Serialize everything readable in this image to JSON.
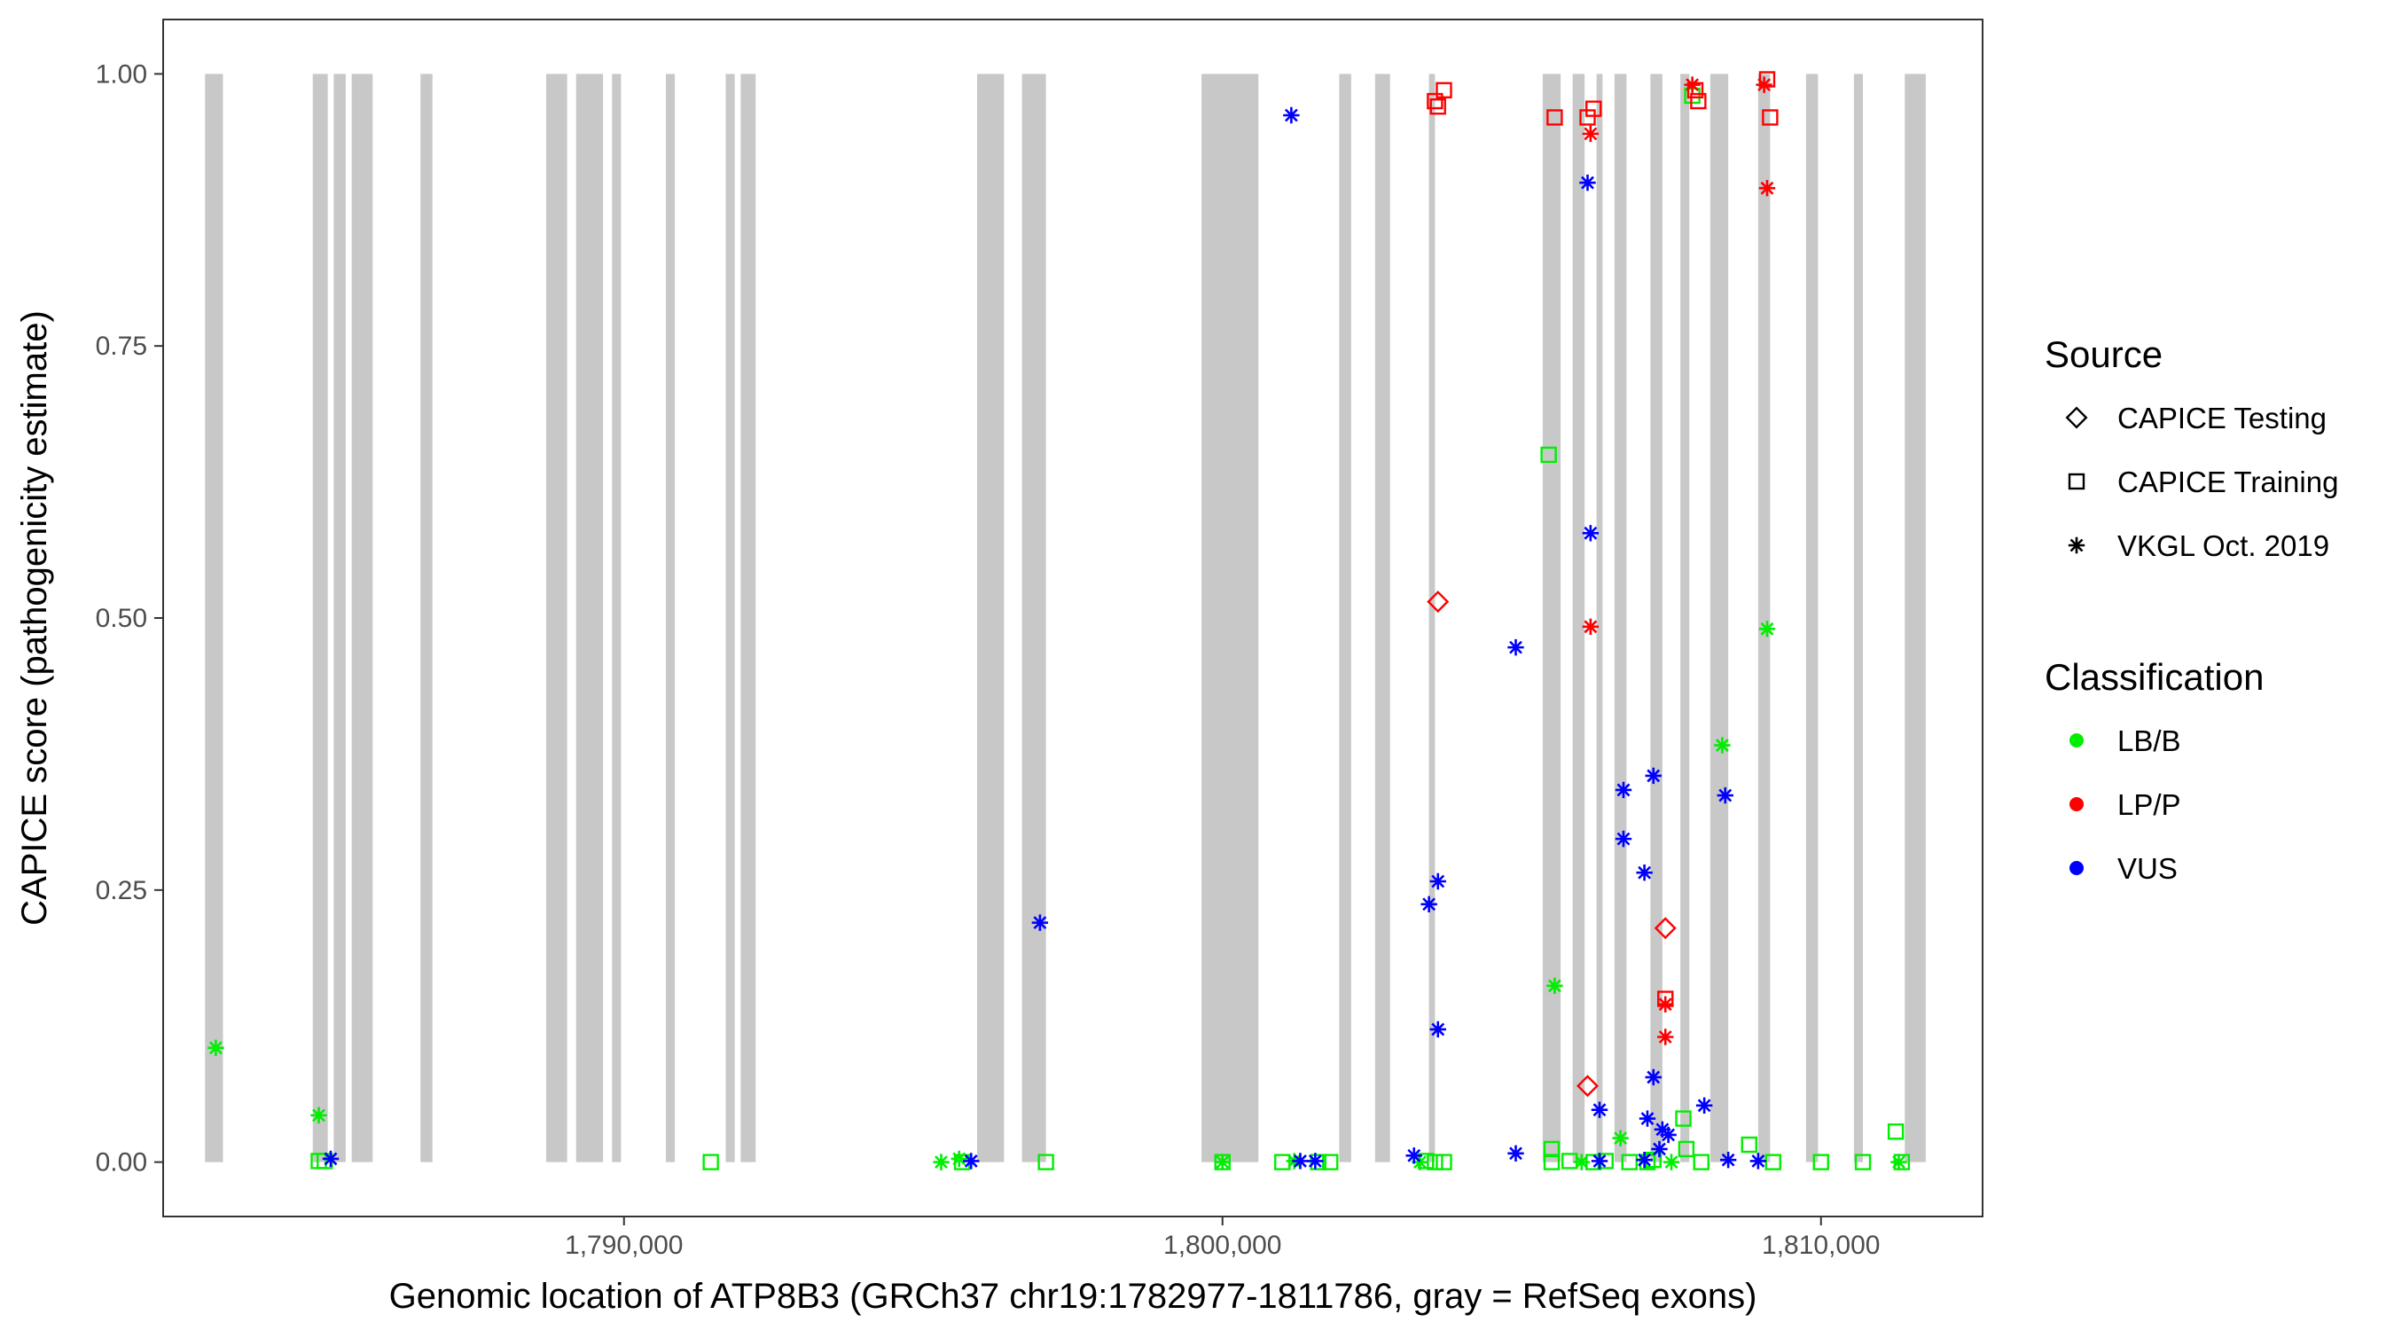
{
  "chart_data": {
    "type": "scatter",
    "xlabel": "Genomic location of ATP8B3 (GRCh37 chr19:1782977-1811786, gray = RefSeq exons)",
    "ylabel": "CAPICE score (pathogenicity estimate)",
    "xlim": [
      1782300,
      1812700
    ],
    "ylim": [
      -0.05,
      1.05
    ],
    "x_ticks": [
      1790000,
      1800000,
      1810000
    ],
    "x_tick_labels": [
      "1,790,000",
      "1,800,000",
      "1,810,000"
    ],
    "y_ticks": [
      0,
      0.25,
      0.5,
      0.75,
      1
    ],
    "y_tick_labels": [
      "0.00",
      "0.25",
      "0.50",
      "0.75",
      "1.00"
    ],
    "grid": false,
    "exon_color": "#c8c8c8",
    "exons": [
      [
        1783000,
        1783300
      ],
      [
        1784800,
        1785050
      ],
      [
        1785150,
        1785350
      ],
      [
        1785450,
        1785800
      ],
      [
        1786600,
        1786800
      ],
      [
        1788700,
        1789050
      ],
      [
        1789200,
        1789650
      ],
      [
        1789800,
        1789950
      ],
      [
        1790700,
        1790850
      ],
      [
        1791700,
        1791850
      ],
      [
        1791950,
        1792200
      ],
      [
        1795900,
        1796350
      ],
      [
        1796650,
        1797050
      ],
      [
        1799650,
        1800600
      ],
      [
        1801950,
        1802150
      ],
      [
        1802550,
        1802800
      ],
      [
        1803450,
        1803550
      ],
      [
        1805350,
        1805650
      ],
      [
        1805850,
        1806050
      ],
      [
        1806250,
        1806350
      ],
      [
        1806550,
        1806750
      ],
      [
        1807150,
        1807350
      ],
      [
        1807650,
        1807800
      ],
      [
        1808150,
        1808450
      ],
      [
        1808950,
        1809150
      ],
      [
        1809750,
        1809950
      ],
      [
        1810550,
        1810700
      ],
      [
        1811400,
        1811750
      ]
    ],
    "legends": [
      {
        "title": "Source",
        "entries": [
          {
            "label": "CAPICE Testing",
            "shape": "diamond"
          },
          {
            "label": "CAPICE Training",
            "shape": "square"
          },
          {
            "label": "VKGL Oct. 2019",
            "shape": "star"
          }
        ]
      },
      {
        "title": "Classification",
        "entries": [
          {
            "label": "LB/B",
            "color": "#00ee00"
          },
          {
            "label": "LP/P",
            "color": "#ff0000"
          },
          {
            "label": "VUS",
            "color": "#0000ff"
          }
        ]
      }
    ],
    "series": [
      {
        "name": "LB/B",
        "color": "#00ee00",
        "points": [
          [
            1783180,
            0.105,
            "star"
          ],
          [
            1784900,
            0.043,
            "star"
          ],
          [
            1784900,
            0.001,
            "square"
          ],
          [
            1785000,
            0.001,
            "square"
          ],
          [
            1791450,
            0.0,
            "square"
          ],
          [
            1795300,
            0.0,
            "star"
          ],
          [
            1795600,
            0.003,
            "star"
          ],
          [
            1795650,
            0.0,
            "square"
          ],
          [
            1797050,
            0.0,
            "square"
          ],
          [
            1800000,
            0.0,
            "star"
          ],
          [
            1800000,
            0.0,
            "square"
          ],
          [
            1801000,
            0.0,
            "square"
          ],
          [
            1801200,
            0.001,
            "star"
          ],
          [
            1801600,
            0.0,
            "square"
          ],
          [
            1801800,
            0.0,
            "square"
          ],
          [
            1803300,
            0.0,
            "star"
          ],
          [
            1803400,
            0.001,
            "square"
          ],
          [
            1803550,
            0.0,
            "square"
          ],
          [
            1803700,
            0.0,
            "square"
          ],
          [
            1805450,
            0.65,
            "square"
          ],
          [
            1805500,
            0.0,
            "square"
          ],
          [
            1805550,
            0.162,
            "star"
          ],
          [
            1805500,
            0.012,
            "square"
          ],
          [
            1805800,
            0.001,
            "square"
          ],
          [
            1806000,
            0.0,
            "star"
          ],
          [
            1806200,
            0.0,
            "square"
          ],
          [
            1806400,
            0.001,
            "square"
          ],
          [
            1806650,
            0.022,
            "star"
          ],
          [
            1806800,
            0.0,
            "square"
          ],
          [
            1807100,
            0.0,
            "square"
          ],
          [
            1807200,
            0.002,
            "square"
          ],
          [
            1807500,
            0.0,
            "star"
          ],
          [
            1807700,
            0.04,
            "square"
          ],
          [
            1807750,
            0.012,
            "square"
          ],
          [
            1807850,
            0.98,
            "square"
          ],
          [
            1808000,
            0.0,
            "square"
          ],
          [
            1808350,
            0.383,
            "star"
          ],
          [
            1808800,
            0.016,
            "square"
          ],
          [
            1809100,
            0.49,
            "star"
          ],
          [
            1809200,
            0.0,
            "square"
          ],
          [
            1810000,
            0.0,
            "square"
          ],
          [
            1810700,
            0.0,
            "square"
          ],
          [
            1811250,
            0.028,
            "square"
          ],
          [
            1811300,
            0.0,
            "star"
          ],
          [
            1811350,
            0.0,
            "square"
          ]
        ]
      },
      {
        "name": "LP/P",
        "color": "#ff0000",
        "points": [
          [
            1803550,
            0.975,
            "square"
          ],
          [
            1803600,
            0.97,
            "square"
          ],
          [
            1803700,
            0.985,
            "square"
          ],
          [
            1803600,
            0.515,
            "diamond"
          ],
          [
            1805550,
            0.96,
            "square"
          ],
          [
            1806100,
            0.96,
            "square"
          ],
          [
            1806150,
            0.945,
            "star"
          ],
          [
            1806200,
            0.968,
            "square"
          ],
          [
            1806150,
            0.492,
            "star"
          ],
          [
            1806100,
            0.07,
            "diamond"
          ],
          [
            1807400,
            0.215,
            "diamond"
          ],
          [
            1807400,
            0.15,
            "square"
          ],
          [
            1807400,
            0.145,
            "star"
          ],
          [
            1807400,
            0.115,
            "star"
          ],
          [
            1807850,
            0.99,
            "star"
          ],
          [
            1807900,
            0.985,
            "square"
          ],
          [
            1807950,
            0.975,
            "square"
          ],
          [
            1809050,
            0.99,
            "star"
          ],
          [
            1809100,
            0.995,
            "square"
          ],
          [
            1809150,
            0.96,
            "square"
          ],
          [
            1809100,
            0.895,
            "star"
          ]
        ]
      },
      {
        "name": "VUS",
        "color": "#0000ff",
        "points": [
          [
            1785100,
            0.003,
            "star"
          ],
          [
            1795800,
            0.001,
            "star"
          ],
          [
            1796950,
            0.22,
            "star"
          ],
          [
            1801150,
            0.962,
            "star"
          ],
          [
            1801300,
            0.001,
            "star"
          ],
          [
            1801550,
            0.001,
            "star"
          ],
          [
            1803200,
            0.006,
            "star"
          ],
          [
            1803450,
            0.237,
            "star"
          ],
          [
            1803600,
            0.258,
            "star"
          ],
          [
            1803600,
            0.122,
            "star"
          ],
          [
            1804900,
            0.473,
            "star"
          ],
          [
            1804900,
            0.008,
            "star"
          ],
          [
            1806100,
            0.9,
            "star"
          ],
          [
            1806150,
            0.578,
            "star"
          ],
          [
            1806300,
            0.048,
            "star"
          ],
          [
            1806300,
            0.001,
            "star"
          ],
          [
            1806700,
            0.342,
            "star"
          ],
          [
            1806700,
            0.297,
            "star"
          ],
          [
            1807050,
            0.266,
            "star"
          ],
          [
            1807100,
            0.04,
            "star"
          ],
          [
            1807200,
            0.355,
            "star"
          ],
          [
            1807200,
            0.078,
            "star"
          ],
          [
            1807350,
            0.03,
            "star"
          ],
          [
            1807450,
            0.025,
            "star"
          ],
          [
            1807300,
            0.012,
            "star"
          ],
          [
            1807050,
            0.002,
            "star"
          ],
          [
            1808050,
            0.052,
            "star"
          ],
          [
            1808400,
            0.337,
            "star"
          ],
          [
            1808450,
            0.002,
            "star"
          ],
          [
            1808950,
            0.001,
            "star"
          ]
        ]
      }
    ]
  }
}
